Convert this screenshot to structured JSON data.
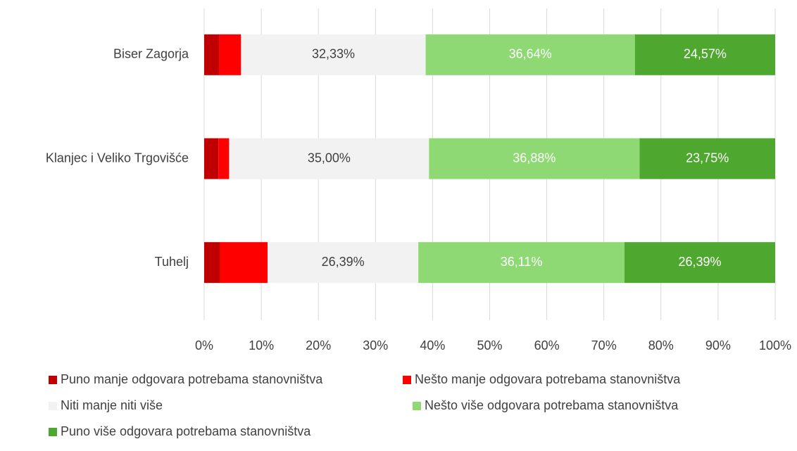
{
  "chart_data": {
    "type": "bar_stacked_horizontal",
    "categories": [
      "Biser Zagorja",
      "Klanjec i Veliko Trgovišće",
      "Tuhelj"
    ],
    "series": [
      {
        "name": "Puno manje odgovara potrebama stanovništva",
        "color": "#c00000",
        "values": [
          2.59,
          2.5,
          2.78
        ]
      },
      {
        "name": "Nešto manje odgovara potrebama stanovništva",
        "color": "#ff0000",
        "values": [
          3.87,
          1.87,
          8.33
        ]
      },
      {
        "name": "Niti manje niti više",
        "color": "#f2f2f2",
        "values": [
          32.33,
          35.0,
          26.39
        ],
        "value_labels": [
          "32,33%",
          "35,00%",
          "26,39%"
        ]
      },
      {
        "name": "Nešto više odgovara potrebama stanovništva",
        "color": "#8fd974",
        "values": [
          36.64,
          36.88,
          36.11
        ],
        "value_labels": [
          "36,64%",
          "36,88%",
          "36,11%"
        ]
      },
      {
        "name": "Puno više odgovara potrebama stanovništva",
        "color": "#4ea72e",
        "values": [
          24.57,
          23.75,
          26.39
        ],
        "value_labels": [
          "24,57%",
          "23,75%",
          "26,39%"
        ]
      }
    ],
    "xlim": [
      0,
      100
    ],
    "xticks": [
      {
        "value": 0,
        "label": "0%"
      },
      {
        "value": 10,
        "label": "10%"
      },
      {
        "value": 20,
        "label": "20%"
      },
      {
        "value": 30,
        "label": "30%"
      },
      {
        "value": 40,
        "label": "40%"
      },
      {
        "value": 50,
        "label": "50%"
      },
      {
        "value": 60,
        "label": "60%"
      },
      {
        "value": 70,
        "label": "70%"
      },
      {
        "value": 80,
        "label": "80%"
      },
      {
        "value": 90,
        "label": "90%"
      },
      {
        "value": 100,
        "label": "100%"
      }
    ],
    "grid": true
  }
}
